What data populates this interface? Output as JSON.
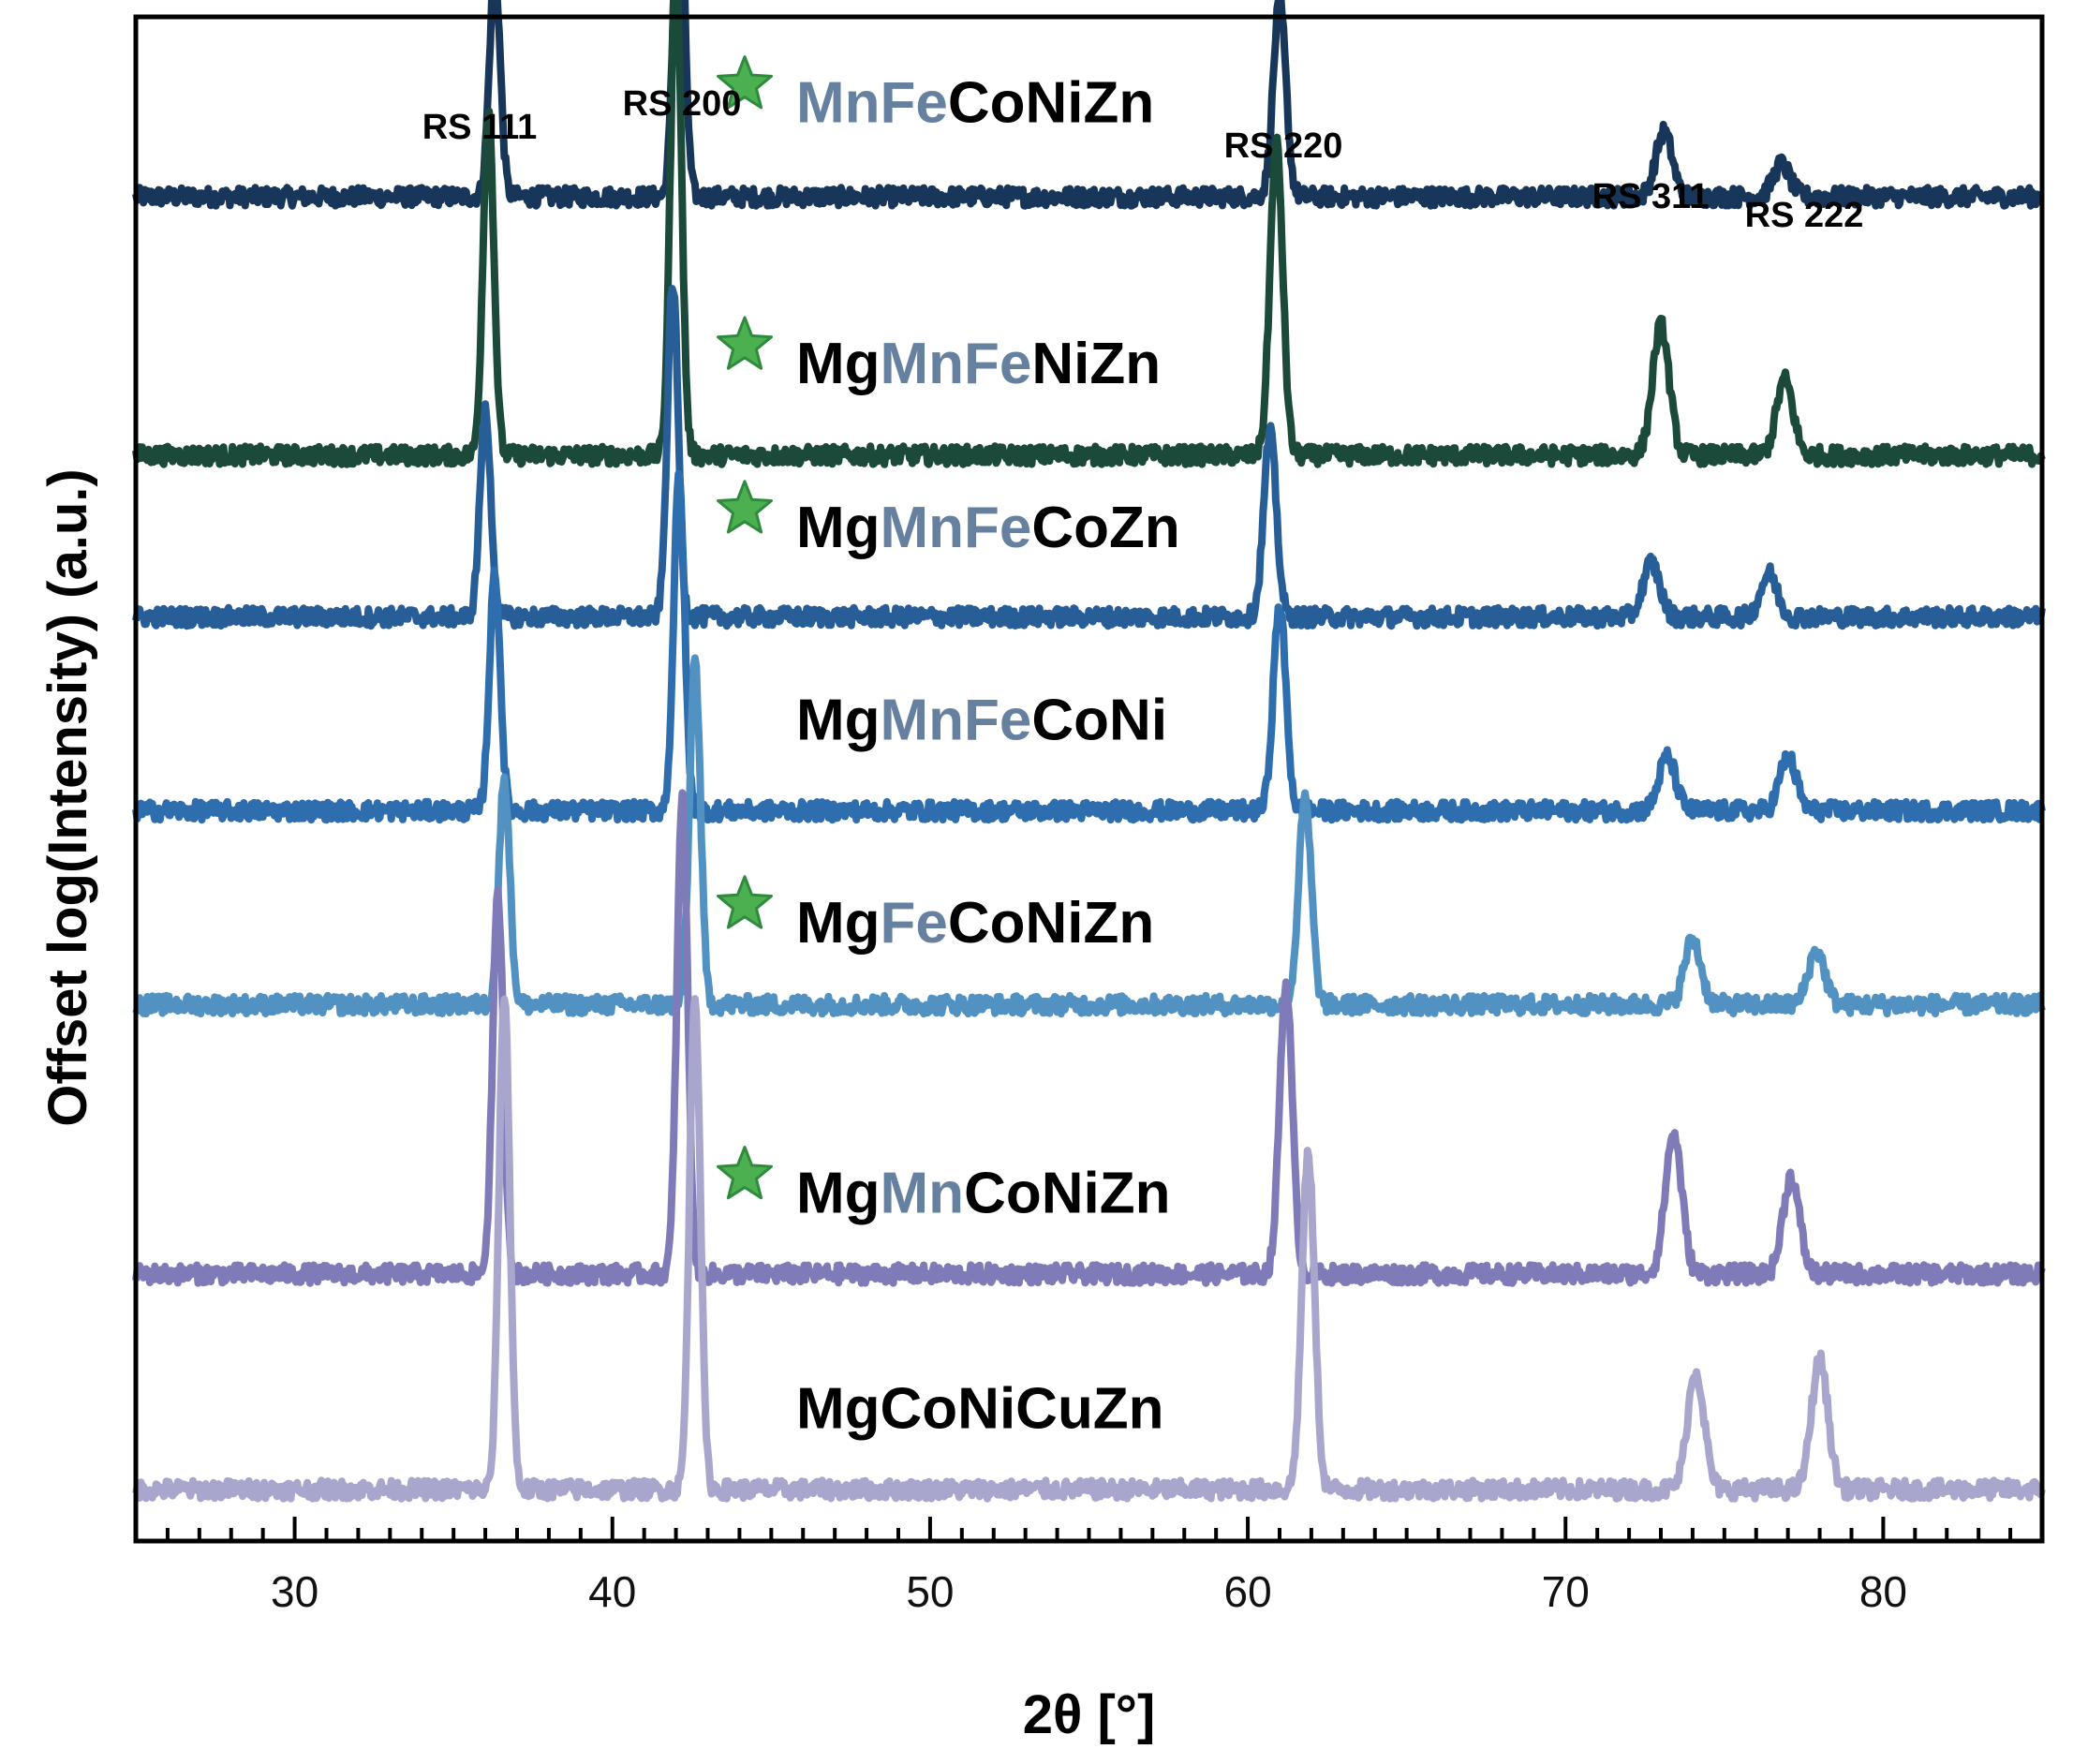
{
  "chart_data": {
    "type": "line",
    "title": "",
    "xlabel": "2θ [°]",
    "ylabel": "Offset log(Intensity) (a.u.)",
    "xlim": [
      25,
      85
    ],
    "xticks": [
      30,
      40,
      50,
      60,
      70,
      80
    ],
    "grid": false,
    "legend": "none",
    "peak_labels": [
      {
        "text": "RS 111",
        "x": 36.2
      },
      {
        "text": "RS 200",
        "x": 42.1
      },
      {
        "text": "RS 220",
        "x": 61.0
      },
      {
        "text": "RS 311",
        "x": 73.2
      },
      {
        "text": "RS 222",
        "x": 77.0
      }
    ],
    "series": [
      {
        "name": "MnFeCoNiZn",
        "label_parts": [
          {
            "text": "MnFe",
            "color": "#66809f"
          },
          {
            "text": "CoNiZn",
            "color": "#000000"
          }
        ],
        "starred": true,
        "color": "#17365a",
        "offset": 6.0,
        "peaks": [
          [
            36.3,
            1.05
          ],
          [
            42.1,
            1.55
          ],
          [
            61.0,
            0.9
          ],
          [
            73.1,
            0.3
          ],
          [
            76.8,
            0.15
          ]
        ]
      },
      {
        "name": "MgMnFeNiZn",
        "label_parts": [
          {
            "text": "Mg",
            "color": "#000000"
          },
          {
            "text": "MnFe",
            "color": "#66809f"
          },
          {
            "text": "NiZn",
            "color": "#000000"
          }
        ],
        "starred": true,
        "color": "#1c4a3a",
        "offset": 4.8,
        "peaks": [
          [
            36.1,
            1.6
          ],
          [
            42.0,
            2.3
          ],
          [
            60.9,
            1.45
          ],
          [
            73.0,
            0.6
          ],
          [
            76.9,
            0.35
          ]
        ]
      },
      {
        "name": "MgMnFeCoZn",
        "label_parts": [
          {
            "text": "Mg",
            "color": "#000000"
          },
          {
            "text": "MnFe",
            "color": "#66809f"
          },
          {
            "text": "CoZn",
            "color": "#000000"
          }
        ],
        "starred": true,
        "color": "#285e98",
        "offset": 4.05,
        "peaks": [
          [
            36.0,
            0.95
          ],
          [
            41.9,
            1.55
          ],
          [
            60.7,
            0.85
          ],
          [
            72.7,
            0.25
          ],
          [
            76.4,
            0.2
          ]
        ]
      },
      {
        "name": "MgMnFeCoNi",
        "label_parts": [
          {
            "text": "Mg",
            "color": "#000000"
          },
          {
            "text": "MnFe",
            "color": "#66809f"
          },
          {
            "text": "CoNi",
            "color": "#000000"
          }
        ],
        "starred": false,
        "color": "#2e6eae",
        "offset": 3.15,
        "peaks": [
          [
            36.3,
            1.1
          ],
          [
            42.1,
            1.55
          ],
          [
            61.0,
            0.95
          ],
          [
            73.2,
            0.25
          ],
          [
            77.0,
            0.25
          ]
        ]
      },
      {
        "name": "MgFeCoNiZn",
        "label_parts": [
          {
            "text": "Mg",
            "color": "#000000"
          },
          {
            "text": "Fe",
            "color": "#66809f"
          },
          {
            "text": "CoNiZn",
            "color": "#000000"
          }
        ],
        "starred": true,
        "color": "#5192c3",
        "offset": 2.25,
        "peaks": [
          [
            36.6,
            1.05
          ],
          [
            42.6,
            1.6
          ],
          [
            61.8,
            0.95
          ],
          [
            74.0,
            0.3
          ],
          [
            77.9,
            0.25
          ]
        ]
      },
      {
        "name": "MgMnCoNiZn",
        "label_parts": [
          {
            "text": "Mg",
            "color": "#000000"
          },
          {
            "text": "Mn",
            "color": "#66809f"
          },
          {
            "text": "CoNiZn",
            "color": "#000000"
          }
        ],
        "starred": true,
        "color": "#7e7bb8",
        "offset": 1.0,
        "peaks": [
          [
            36.4,
            1.75
          ],
          [
            42.2,
            2.2
          ],
          [
            61.2,
            1.35
          ],
          [
            73.4,
            0.65
          ],
          [
            77.1,
            0.45
          ]
        ]
      },
      {
        "name": "MgCoNiCuZn",
        "label_parts": [
          {
            "text": "MgCoNiCuZn",
            "color": "#000000"
          }
        ],
        "starred": false,
        "color": "#a9a6cd",
        "offset": 0.0,
        "peaks": [
          [
            36.6,
            2.3
          ],
          [
            42.6,
            2.3
          ],
          [
            61.9,
            1.55
          ],
          [
            74.1,
            0.55
          ],
          [
            78.0,
            0.6
          ]
        ]
      }
    ]
  },
  "colors": {
    "axis": "#000000",
    "star_fill": "#4caf50",
    "star_stroke": "#2e8b3e",
    "metal_highlight": "#66809f"
  }
}
